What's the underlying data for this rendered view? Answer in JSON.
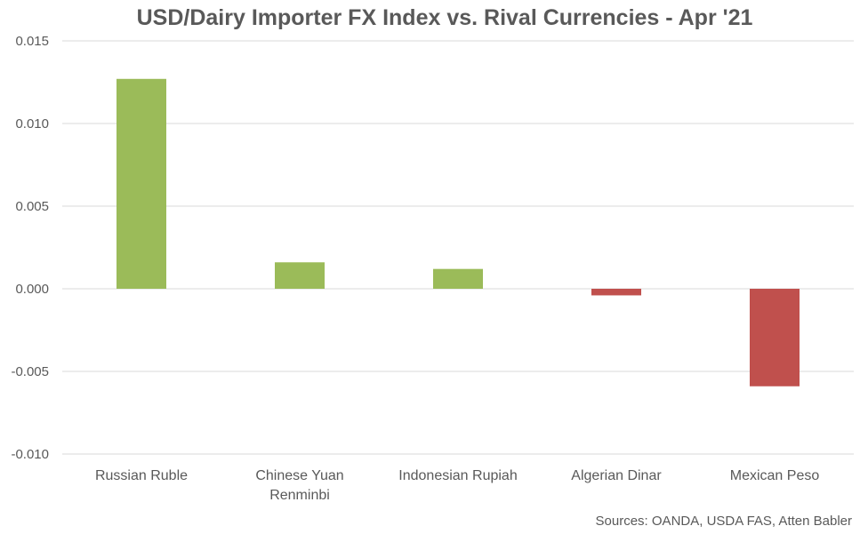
{
  "chart_data": {
    "type": "bar",
    "title": "USD/Dairy Importer FX Index vs. Rival Currencies - Apr '21",
    "categories": [
      "Russian Ruble",
      "Chinese Yuan\nRenminbi",
      "Indonesian Rupiah",
      "Algerian Dinar",
      "Mexican Peso"
    ],
    "values": [
      0.0127,
      0.0016,
      0.0012,
      -0.0004,
      -0.0059
    ],
    "bar_colors": [
      "#9BBB59",
      "#9BBB59",
      "#9BBB59",
      "#C0504D",
      "#C0504D"
    ],
    "xlabel": "",
    "ylabel": "",
    "ylim": [
      -0.01,
      0.015
    ],
    "yticks": [
      "0.015",
      "0.010",
      "0.005",
      "0.000",
      "-0.005",
      "-0.010"
    ],
    "grid": true,
    "legend": "none"
  },
  "source": "Sources: OANDA, USDA FAS, Atten Babler"
}
